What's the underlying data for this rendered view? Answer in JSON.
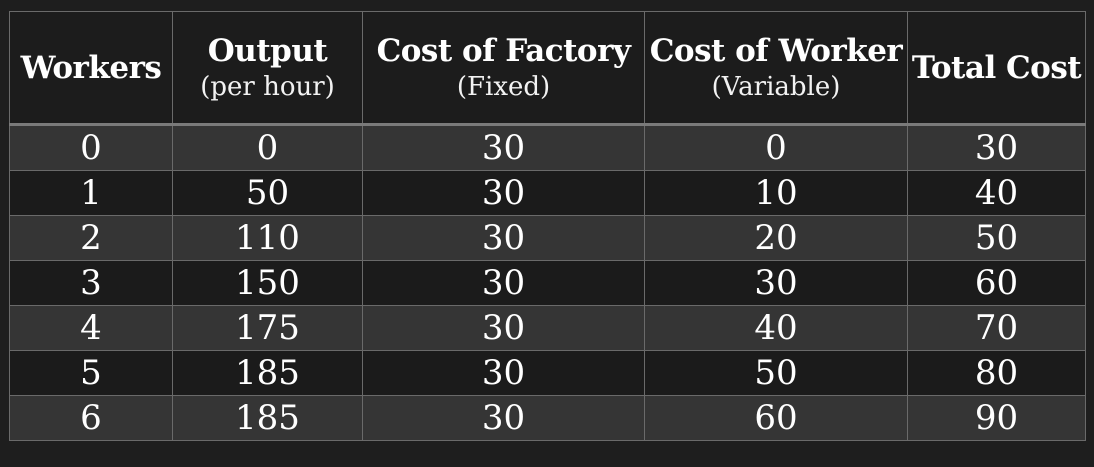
{
  "chart_data": {
    "type": "table",
    "columns": [
      {
        "title": "Workers",
        "subtitle": ""
      },
      {
        "title": "Output",
        "subtitle": "(per hour)"
      },
      {
        "title": "Cost of Factory",
        "subtitle": "(Fixed)"
      },
      {
        "title": "Cost of Worker",
        "subtitle": "(Variable)"
      },
      {
        "title": "Total Cost",
        "subtitle": ""
      }
    ],
    "rows": [
      [
        "0",
        "0",
        "30",
        "0",
        "30"
      ],
      [
        "1",
        "50",
        "30",
        "10",
        "40"
      ],
      [
        "2",
        "110",
        "30",
        "20",
        "50"
      ],
      [
        "3",
        "150",
        "30",
        "30",
        "60"
      ],
      [
        "4",
        "175",
        "30",
        "40",
        "70"
      ],
      [
        "5",
        "185",
        "30",
        "50",
        "80"
      ],
      [
        "6",
        "185",
        "30",
        "60",
        "90"
      ]
    ]
  },
  "colors": {
    "background": "#1e1e1e",
    "row_light": "#353535",
    "row_dark": "#1b1b1b",
    "grid_line": "#6a6a6a",
    "text": "#ffffff"
  }
}
